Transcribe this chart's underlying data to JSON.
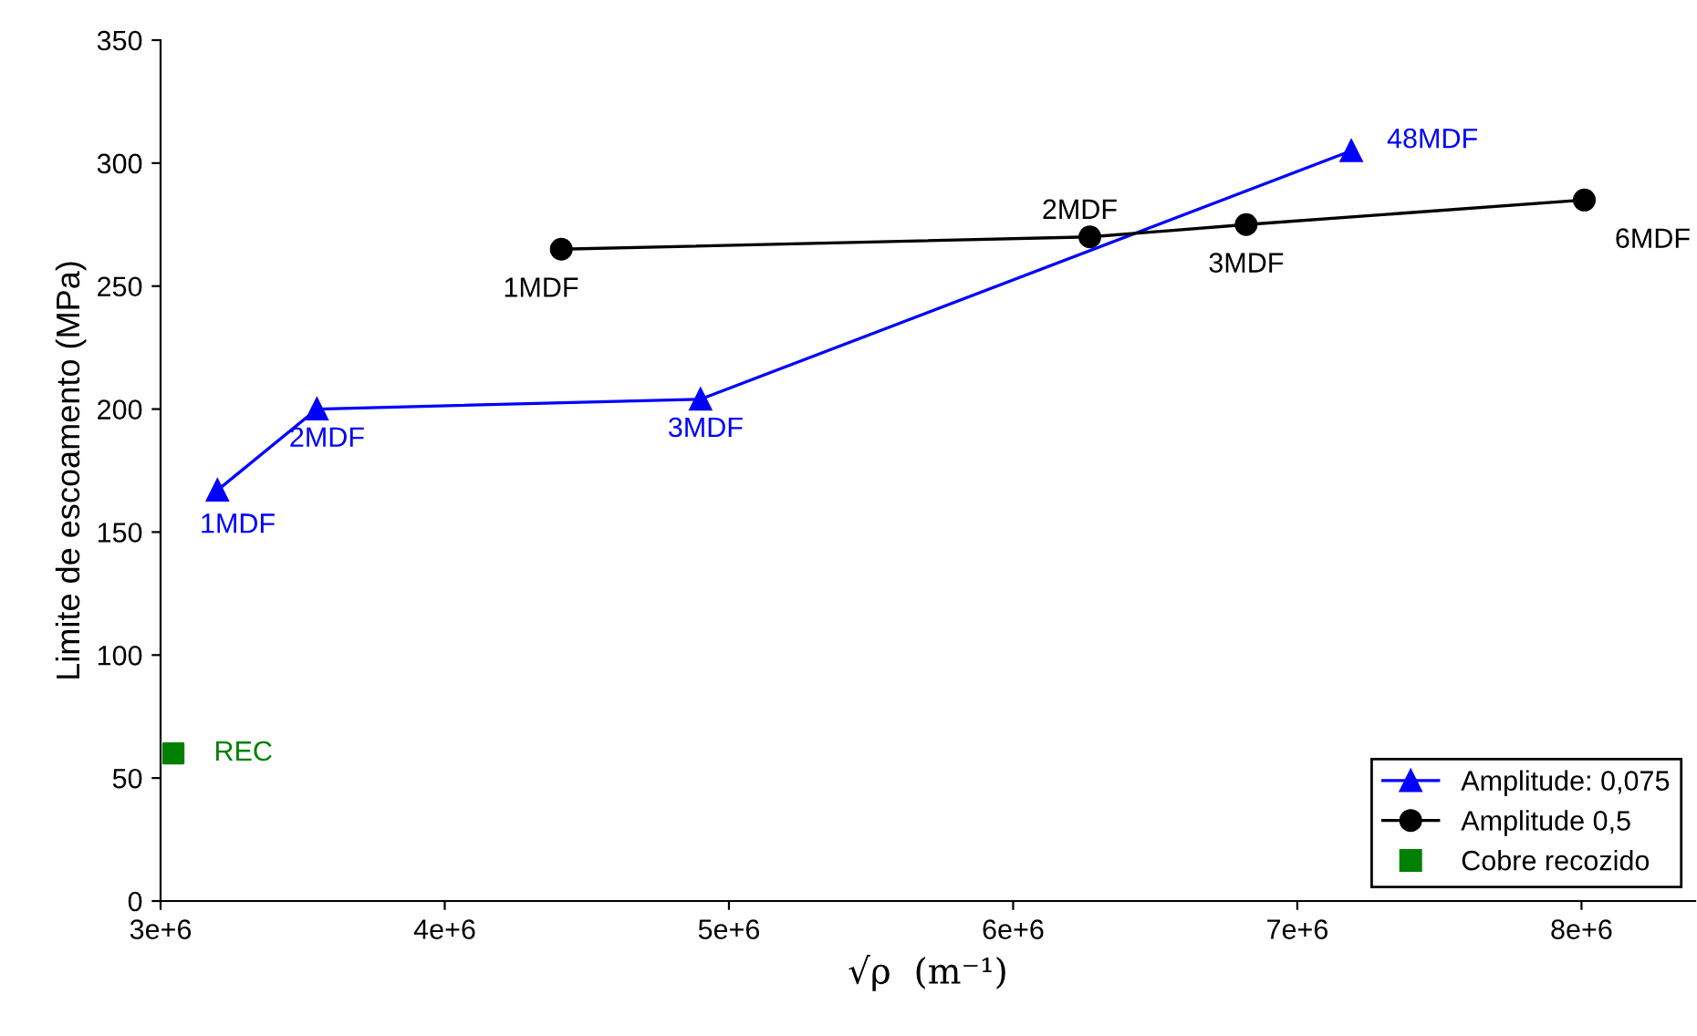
{
  "chart_data": {
    "type": "line",
    "xlabel": "√ρ  (m⁻¹)",
    "ylabel": "Limite de escoamento (MPa)",
    "series": [
      {
        "name": "Amplitude: 0,075",
        "color": "#0000ff",
        "marker": "triangle",
        "x": [
          3200000,
          3550000,
          4900000,
          7190000
        ],
        "values": [
          167,
          200,
          204,
          305
        ]
      },
      {
        "name": "Amplitude 0,5",
        "color": "#000000",
        "marker": "circle",
        "x": [
          4410000,
          6270000,
          6820000,
          8010000
        ],
        "values": [
          265,
          270,
          275,
          285
        ]
      },
      {
        "name": "Cobre recozido",
        "type": "scatter",
        "color": "#008000",
        "marker": "square",
        "x": [
          3045000
        ],
        "values": [
          60
        ]
      }
    ],
    "annotations": [
      {
        "text": "1MDF",
        "x": 3200000,
        "y": 167
      },
      {
        "text": "2MDF",
        "x": 3550000,
        "y": 200
      },
      {
        "text": "3MDF",
        "x": 4900000,
        "y": 204
      },
      {
        "text": "48MDF",
        "x": 7190000,
        "y": 305
      },
      {
        "text": "1MDF",
        "x": 4410000,
        "y": 265
      },
      {
        "text": "2MDF",
        "x": 6270000,
        "y": 270
      },
      {
        "text": "3MDF",
        "x": 6820000,
        "y": 275
      },
      {
        "text": "6MDF",
        "x": 8010000,
        "y": 285
      },
      {
        "text": "REC",
        "x": 3045000,
        "y": 60
      }
    ],
    "xlim": [
      3000000,
      8400000
    ],
    "xticks": [
      {
        "value": 3000000,
        "label": "3e+6"
      },
      {
        "value": 4000000,
        "label": "4e+6"
      },
      {
        "value": 5000000,
        "label": "5e+6"
      },
      {
        "value": 6000000,
        "label": "6e+6"
      },
      {
        "value": 7000000,
        "label": "7e+6"
      },
      {
        "value": 8000000,
        "label": "8e+6"
      }
    ],
    "ylim": [
      0,
      350
    ],
    "yticks": [
      0,
      50,
      100,
      150,
      200,
      250,
      300,
      350
    ],
    "legend": "bottom right"
  }
}
